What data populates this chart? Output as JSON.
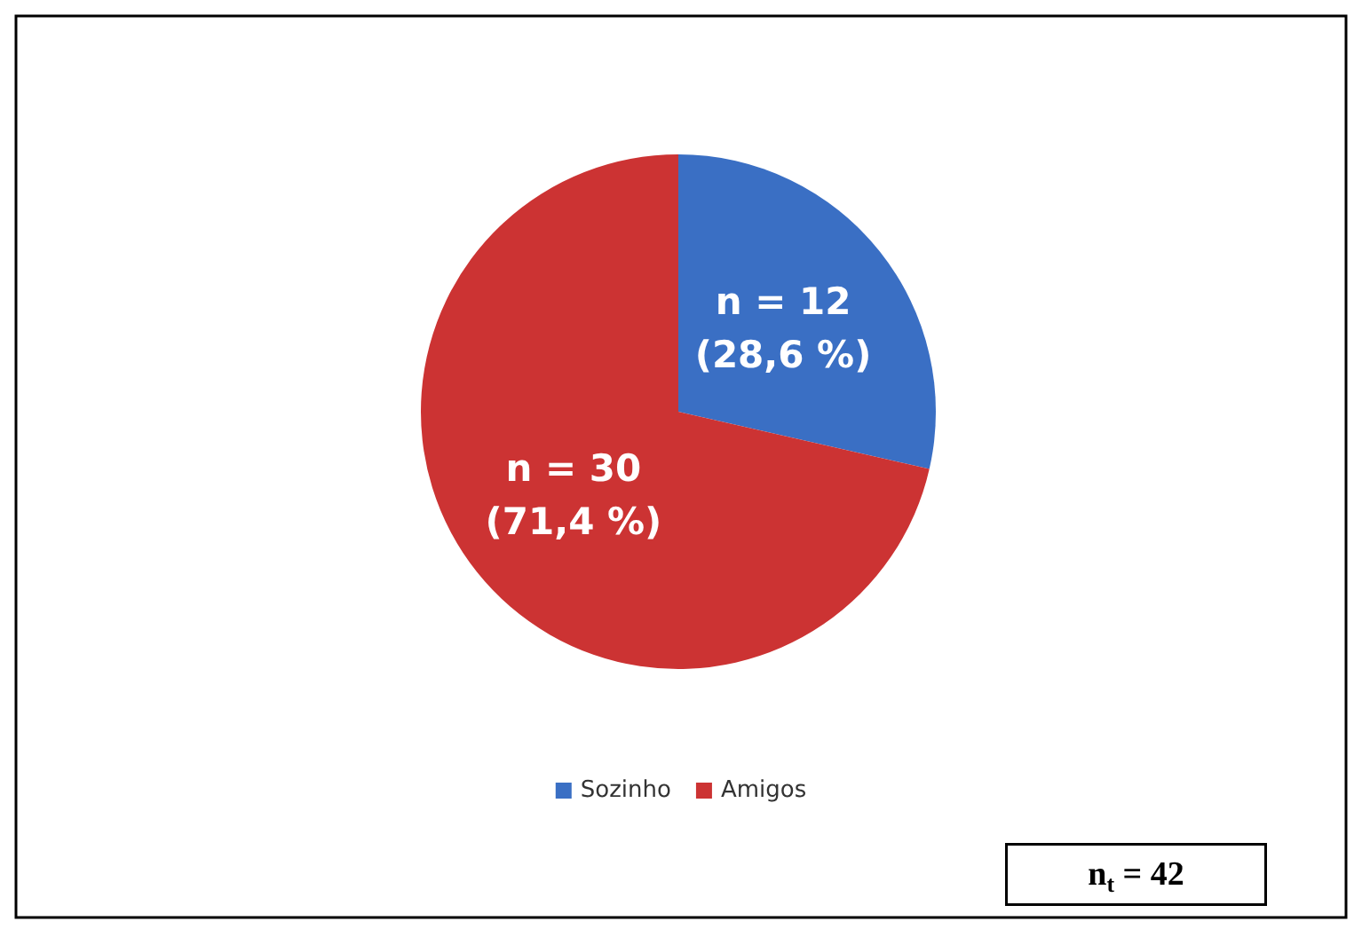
{
  "chart_data": {
    "type": "pie",
    "categories": [
      "Sozinho",
      "Amigos"
    ],
    "values": [
      12,
      30
    ],
    "colors": [
      "#3a6fc4",
      "#cc3333"
    ],
    "value_labels": [
      "n = 12\n(28,6 %)",
      "n = 30\n(71,4 %)"
    ],
    "legend": "bottom",
    "annotations": [
      "n$_{t}$ = 42"
    ]
  }
}
